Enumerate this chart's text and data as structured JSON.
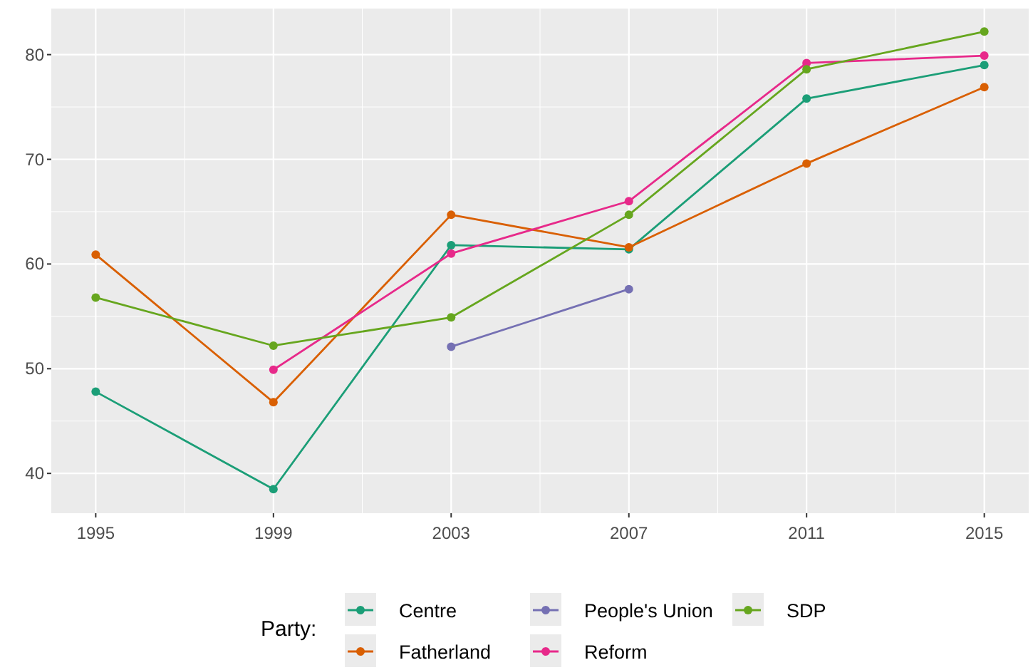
{
  "chart_data": {
    "type": "line",
    "x": [
      1995,
      1999,
      2003,
      2007,
      2011,
      2015
    ],
    "xlim": [
      1994,
      2016
    ],
    "xticks": [
      1995,
      1999,
      2003,
      2007,
      2011,
      2015
    ],
    "ylim": [
      36.2,
      84.4
    ],
    "yticks": [
      40,
      50,
      60,
      70,
      80
    ],
    "grid": true,
    "marker": "circle",
    "line_style": "solid",
    "legend": "bottom",
    "legend_title": "Party:",
    "series": [
      {
        "name": "Centre",
        "color": "#1b9e77",
        "values": [
          47.8,
          38.5,
          61.8,
          61.4,
          75.8,
          79.0
        ]
      },
      {
        "name": "Fatherland",
        "color": "#d95f02",
        "values": [
          60.9,
          46.8,
          64.7,
          61.6,
          69.6,
          76.9
        ]
      },
      {
        "name": "People's Union",
        "color": "#7570b3",
        "values": [
          null,
          null,
          52.1,
          57.6,
          null,
          null
        ]
      },
      {
        "name": "Reform",
        "color": "#e7298a",
        "values": [
          null,
          49.9,
          61.0,
          66.0,
          79.2,
          79.9
        ]
      },
      {
        "name": "SDP",
        "color": "#66a61e",
        "values": [
          56.8,
          52.2,
          54.9,
          64.7,
          78.6,
          82.2
        ]
      }
    ]
  }
}
